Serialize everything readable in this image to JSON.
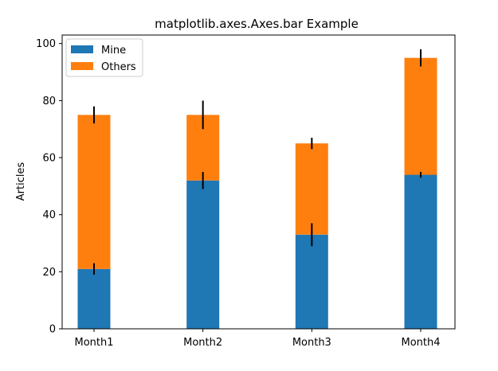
{
  "chart_data": {
    "type": "bar",
    "stacked": true,
    "title": "matplotlib.axes.Axes.bar Example",
    "xlabel": "",
    "ylabel": "Articles",
    "categories": [
      "Month1",
      "Month2",
      "Month3",
      "Month4"
    ],
    "ylim": [
      0,
      103
    ],
    "yticks": [
      0,
      20,
      40,
      60,
      80,
      100
    ],
    "grid": false,
    "legend_position": "top-left",
    "series": [
      {
        "name": "Mine",
        "color": "#1f77b4",
        "values": [
          21,
          52,
          33,
          54
        ],
        "errors": [
          2,
          3,
          4,
          1
        ]
      },
      {
        "name": "Others",
        "color": "#ff7f0e",
        "values": [
          54,
          23,
          32,
          41
        ],
        "errors": [
          3,
          5,
          2,
          3
        ]
      }
    ]
  }
}
